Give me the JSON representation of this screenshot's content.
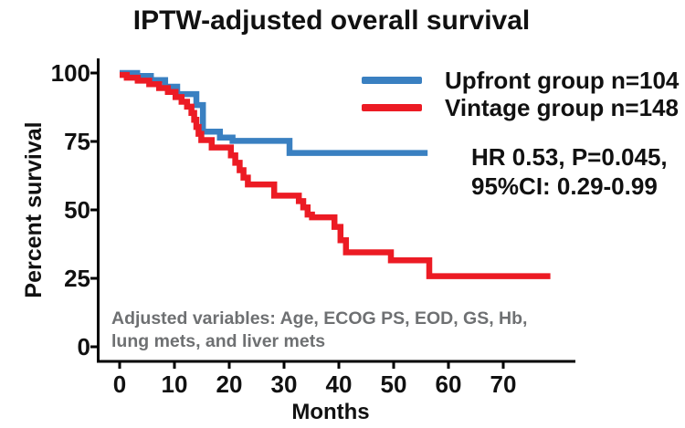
{
  "title": "IPTW-adjusted overall survival",
  "colors": {
    "upfront": "#3a80c1",
    "vintage": "#ec1b24",
    "axis": "#000000",
    "note_gray": "#6e7072"
  },
  "legend": {
    "items": [
      {
        "label": "Upfront group n=104",
        "color": "#3a80c1"
      },
      {
        "label": "Vintage group n=148",
        "color": "#ec1b24"
      }
    ]
  },
  "annotation": {
    "line1": "HR 0.53, P=0.045,",
    "line2": "95%CI: 0.29-0.99"
  },
  "note": {
    "line1": "Adjusted variables: Age, ECOG PS, EOD, GS, Hb,",
    "line2": "lung mets, and liver mets"
  },
  "chart_data": {
    "type": "line",
    "subtype": "kaplan-meier-step",
    "title": "IPTW-adjusted overall survival",
    "xlabel": "Months",
    "ylabel": "Percent survival",
    "xlim": [
      0,
      83
    ],
    "ylim": [
      0,
      100
    ],
    "x_ticks": [
      0,
      10,
      20,
      30,
      40,
      50,
      60,
      70
    ],
    "y_ticks": [
      0,
      25,
      50,
      75,
      100
    ],
    "grid": false,
    "legend_position": "top-right",
    "series": [
      {
        "name": "Upfront group n=104",
        "color": "#3a80c1",
        "end_time": 56.2,
        "steps": [
          [
            0,
            100
          ],
          [
            3.2,
            98.9
          ],
          [
            5.7,
            97.4
          ],
          [
            8.3,
            95.0
          ],
          [
            10.5,
            92.3
          ],
          [
            14.0,
            88.3
          ],
          [
            15.2,
            78.6
          ],
          [
            18.3,
            76.4
          ],
          [
            20.6,
            75.2
          ],
          [
            31.0,
            70.8
          ]
        ]
      },
      {
        "name": "Vintage group n=148",
        "color": "#ec1b24",
        "end_time": 78.6,
        "steps": [
          [
            0,
            99.3
          ],
          [
            1.3,
            98.3
          ],
          [
            3.3,
            97.2
          ],
          [
            5.4,
            95.9
          ],
          [
            7.2,
            94.5
          ],
          [
            8.8,
            93.1
          ],
          [
            10.2,
            91.2
          ],
          [
            11.3,
            89.5
          ],
          [
            12.3,
            87.7
          ],
          [
            13.1,
            85.4
          ],
          [
            13.6,
            82.9
          ],
          [
            14.0,
            80.3
          ],
          [
            14.4,
            77.8
          ],
          [
            14.9,
            75.5
          ],
          [
            16.8,
            72.8
          ],
          [
            20.3,
            69.9
          ],
          [
            21.1,
            67.2
          ],
          [
            21.9,
            64.5
          ],
          [
            22.6,
            61.8
          ],
          [
            23.4,
            59.3
          ],
          [
            28.2,
            55.2
          ],
          [
            32.7,
            53.2
          ],
          [
            33.5,
            50.9
          ],
          [
            34.3,
            48.3
          ],
          [
            35.1,
            47.3
          ],
          [
            39.2,
            43.8
          ],
          [
            40.3,
            38.9
          ],
          [
            41.3,
            34.5
          ],
          [
            49.5,
            31.6
          ],
          [
            56.5,
            25.8
          ]
        ]
      }
    ]
  }
}
